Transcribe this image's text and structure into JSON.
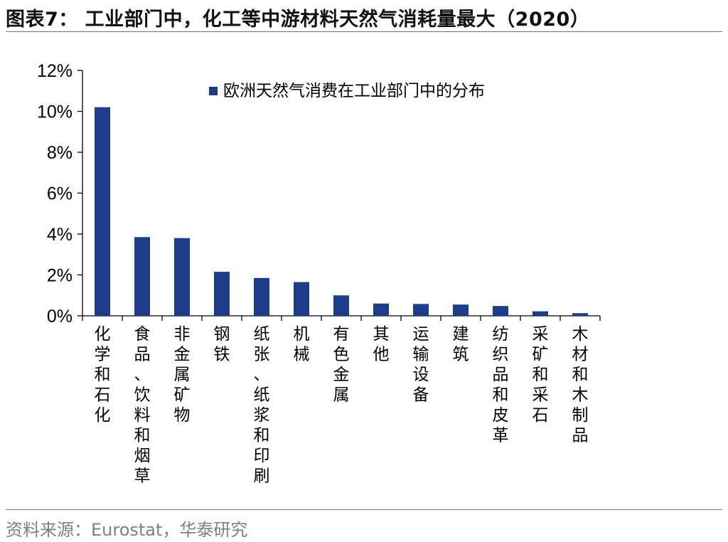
{
  "header": {
    "title": "图表7： 工业部门中，化工等中游材料天然气消耗量最大（2020）"
  },
  "footer": {
    "source": "资料来源：Eurostat，华泰研究"
  },
  "colors": {
    "bar": "#1f3c88",
    "axis": "#000000",
    "rule": "#5b7fb5",
    "source_text": "#7f7f7f"
  },
  "chart_data": {
    "type": "bar",
    "categories": [
      "化学和石化",
      "食品、饮料和烟草",
      "非金属矿物",
      "钢铁",
      "纸张、纸浆和印刷",
      "机械",
      "有色金属",
      "其他",
      "运输设备",
      "建筑",
      "纺织品和皮革",
      "采矿和采石",
      "木材和木制品"
    ],
    "series": [
      {
        "name": "欧洲天然气消费在工业部门中的分布",
        "values": [
          10.2,
          3.85,
          3.8,
          2.15,
          1.85,
          1.65,
          1.0,
          0.6,
          0.58,
          0.55,
          0.48,
          0.22,
          0.13
        ]
      }
    ],
    "ylim": [
      0,
      12
    ],
    "yticks": [
      0,
      2,
      4,
      6,
      8,
      10,
      12
    ],
    "ytick_labels": [
      "0%",
      "2%",
      "4%",
      "6%",
      "8%",
      "10%",
      "12%"
    ],
    "legend_position": "top-right",
    "grid": false,
    "title": "",
    "xlabel": "",
    "ylabel": ""
  }
}
